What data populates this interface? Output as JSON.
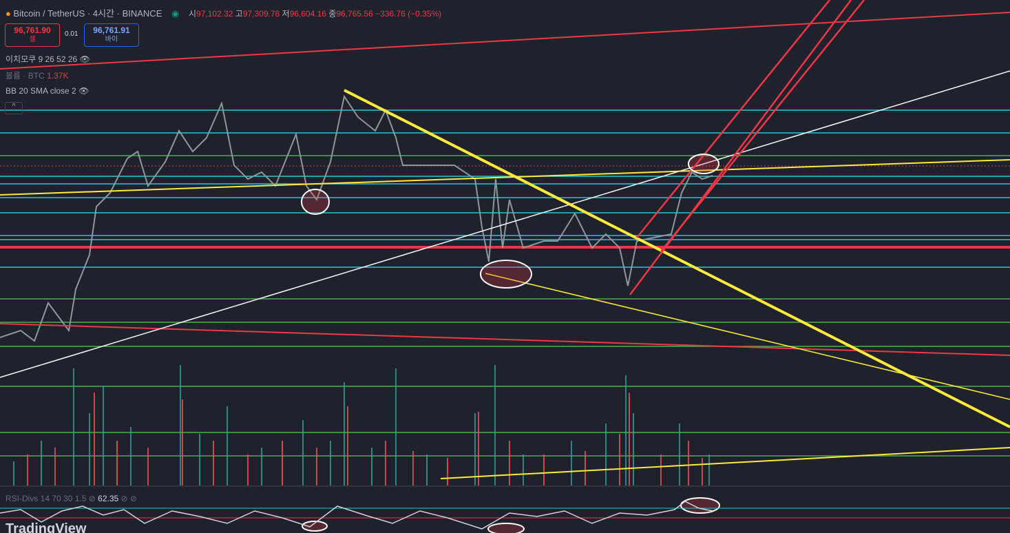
{
  "header": {
    "symbol": "Bitcoin / TetherUS",
    "interval": "4시간",
    "exchange": "BINANCE",
    "ohlc": {
      "open_label": "시",
      "open": "97,102.32",
      "high_label": "고",
      "high": "97,309.78",
      "low_label": "저",
      "low": "96,604.16",
      "close_label": "종",
      "close": "96,765.56",
      "change": "−336.76 (−0.35%)"
    }
  },
  "trade": {
    "sell_price": "96,761.90",
    "sell_label": "셀",
    "spread": "0.01",
    "buy_price": "96,761.91",
    "buy_label": "바이"
  },
  "indicators": {
    "ichimoku": "이치모쿠 9 26 52 26",
    "volume": "볼륨 · BTC",
    "volume_value": "1.37K",
    "bb": "BB 20 SMA close 2",
    "rsi": "RSI-Divs 14 70 30 1.5",
    "rsi_value": "62.35"
  },
  "brand": "TradingView"
}
